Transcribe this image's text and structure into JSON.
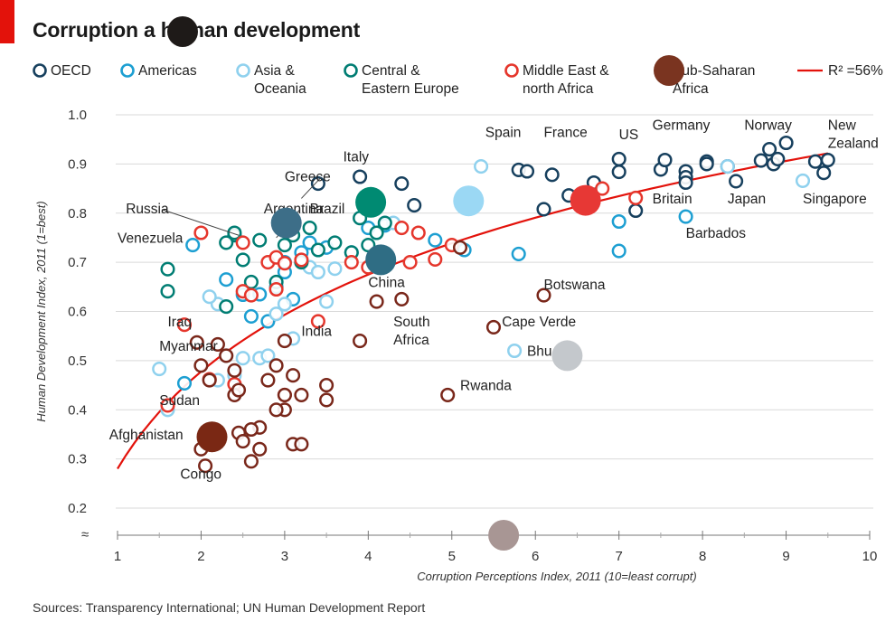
{
  "title": "Corruption a human development",
  "source": "Sources: Transparency International; UN Human Development Report",
  "chart_data": {
    "type": "scatter",
    "title": "Corruption a human development",
    "xlabel": "Corruption Perceptions Index, 2011 (10=least corrupt)",
    "ylabel": "Human Development Index, 2011 (1=best)",
    "xlim": [
      1,
      10
    ],
    "ylim": [
      0.2,
      1.0
    ],
    "xticks": [
      "1",
      "2",
      "3",
      "4",
      "5",
      "6",
      "7",
      "8",
      "9",
      "10"
    ],
    "yticks": [
      "0.2",
      "0.3",
      "0.4",
      "0.5",
      "0.6",
      "0.7",
      "0.8",
      "0.9",
      "1.0"
    ],
    "axis_break": "≈",
    "legend": [
      {
        "label": "OECD",
        "color": "#17405e"
      },
      {
        "label": "Americas",
        "color": "#1d9fd2"
      },
      {
        "label": "Asia &\nOceania",
        "color": "#8fd1ee"
      },
      {
        "label": "Central &\nEastern Europe",
        "color": "#007d73"
      },
      {
        "label": "Middle East &\nnorth Africa",
        "color": "#e5362c"
      },
      {
        "label": "Sub-Saharan\nAfrica",
        "color": "#79271a"
      },
      {
        "label": "R² =56%",
        "color": "#e3120b"
      }
    ],
    "trend": {
      "type": "logarithmic",
      "r_squared_label": "R² =56%",
      "x_range": [
        1,
        9.5
      ]
    },
    "series": [
      {
        "name": "OECD",
        "color": "#17405e",
        "points": [
          {
            "x": 3.4,
            "y": 0.86
          },
          {
            "x": 3.9,
            "y": 0.874
          },
          {
            "x": 4.4,
            "y": 0.86
          },
          {
            "x": 4.55,
            "y": 0.816
          },
          {
            "x": 5.8,
            "y": 0.888
          },
          {
            "x": 5.9,
            "y": 0.885
          },
          {
            "x": 6.2,
            "y": 0.878
          },
          {
            "x": 6.1,
            "y": 0.808
          },
          {
            "x": 6.4,
            "y": 0.836
          },
          {
            "x": 6.7,
            "y": 0.862
          },
          {
            "x": 7.0,
            "y": 0.884
          },
          {
            "x": 7.0,
            "y": 0.91
          },
          {
            "x": 7.5,
            "y": 0.889
          },
          {
            "x": 7.55,
            "y": 0.908
          },
          {
            "x": 7.2,
            "y": 0.805
          },
          {
            "x": 7.8,
            "y": 0.885
          },
          {
            "x": 7.8,
            "y": 0.873
          },
          {
            "x": 7.8,
            "y": 0.862
          },
          {
            "x": 8.05,
            "y": 0.905
          },
          {
            "x": 8.05,
            "y": 0.9
          },
          {
            "x": 8.3,
            "y": 0.895
          },
          {
            "x": 8.4,
            "y": 0.865
          },
          {
            "x": 8.7,
            "y": 0.907
          },
          {
            "x": 8.8,
            "y": 0.93
          },
          {
            "x": 8.85,
            "y": 0.9
          },
          {
            "x": 8.9,
            "y": 0.91
          },
          {
            "x": 9.0,
            "y": 0.943
          },
          {
            "x": 9.35,
            "y": 0.905
          },
          {
            "x": 9.45,
            "y": 0.882
          },
          {
            "x": 9.5,
            "y": 0.908
          }
        ]
      },
      {
        "name": "Americas",
        "color": "#1d9fd2",
        "points": [
          {
            "x": 1.9,
            "y": 0.735
          },
          {
            "x": 2.6,
            "y": 0.59
          },
          {
            "x": 2.7,
            "y": 0.635
          },
          {
            "x": 2.5,
            "y": 0.634
          },
          {
            "x": 3.0,
            "y": 0.68
          },
          {
            "x": 3.1,
            "y": 0.625
          },
          {
            "x": 3.2,
            "y": 0.72
          },
          {
            "x": 2.9,
            "y": 0.65
          },
          {
            "x": 3.3,
            "y": 0.74
          },
          {
            "x": 3.5,
            "y": 0.73
          },
          {
            "x": 3.8,
            "y": 0.72
          },
          {
            "x": 4.0,
            "y": 0.77
          },
          {
            "x": 4.2,
            "y": 0.775
          },
          {
            "x": 4.8,
            "y": 0.745
          },
          {
            "x": 5.15,
            "y": 0.725
          },
          {
            "x": 5.2,
            "y": 0.824
          },
          {
            "x": 5.8,
            "y": 0.717
          },
          {
            "x": 7.0,
            "y": 0.783
          },
          {
            "x": 7.0,
            "y": 0.723
          },
          {
            "x": 7.8,
            "y": 0.793
          },
          {
            "x": 1.8,
            "y": 0.454
          },
          {
            "x": 2.3,
            "y": 0.665
          },
          {
            "x": 2.8,
            "y": 0.58
          },
          {
            "x": 3.0,
            "y": 0.7
          }
        ]
      },
      {
        "name": "Asia & Oceania",
        "color": "#8fd1ee",
        "points": [
          {
            "x": 1.5,
            "y": 0.483
          },
          {
            "x": 1.6,
            "y": 0.4
          },
          {
            "x": 2.2,
            "y": 0.46
          },
          {
            "x": 2.3,
            "y": 0.51
          },
          {
            "x": 2.2,
            "y": 0.615
          },
          {
            "x": 2.5,
            "y": 0.505
          },
          {
            "x": 2.7,
            "y": 0.505
          },
          {
            "x": 2.8,
            "y": 0.51
          },
          {
            "x": 2.9,
            "y": 0.595
          },
          {
            "x": 3.0,
            "y": 0.615
          },
          {
            "x": 3.1,
            "y": 0.545
          },
          {
            "x": 3.3,
            "y": 0.69
          },
          {
            "x": 3.4,
            "y": 0.68
          },
          {
            "x": 3.5,
            "y": 0.62
          },
          {
            "x": 3.6,
            "y": 0.687
          },
          {
            "x": 4.3,
            "y": 0.78
          },
          {
            "x": 5.2,
            "y": 0.826
          },
          {
            "x": 5.35,
            "y": 0.895
          },
          {
            "x": 5.75,
            "y": 0.52
          },
          {
            "x": 8.3,
            "y": 0.895
          },
          {
            "x": 9.2,
            "y": 0.866
          },
          {
            "x": 2.1,
            "y": 0.63
          },
          {
            "x": 2.4,
            "y": 0.47
          }
        ]
      },
      {
        "name": "Central & Eastern Europe",
        "color": "#007d73",
        "points": [
          {
            "x": 1.6,
            "y": 0.686
          },
          {
            "x": 1.6,
            "y": 0.641
          },
          {
            "x": 2.3,
            "y": 0.61
          },
          {
            "x": 2.4,
            "y": 0.755
          },
          {
            "x": 2.5,
            "y": 0.705
          },
          {
            "x": 2.6,
            "y": 0.66
          },
          {
            "x": 2.7,
            "y": 0.745
          },
          {
            "x": 2.9,
            "y": 0.66
          },
          {
            "x": 3.0,
            "y": 0.735
          },
          {
            "x": 3.1,
            "y": 0.755
          },
          {
            "x": 3.3,
            "y": 0.77
          },
          {
            "x": 3.4,
            "y": 0.725
          },
          {
            "x": 3.6,
            "y": 0.74
          },
          {
            "x": 3.8,
            "y": 0.72
          },
          {
            "x": 3.9,
            "y": 0.79
          },
          {
            "x": 4.0,
            "y": 0.82
          },
          {
            "x": 4.1,
            "y": 0.76
          },
          {
            "x": 4.2,
            "y": 0.78
          },
          {
            "x": 2.3,
            "y": 0.74
          },
          {
            "x": 2.4,
            "y": 0.76
          },
          {
            "x": 3.2,
            "y": 0.7
          },
          {
            "x": 4.0,
            "y": 0.735
          }
        ]
      },
      {
        "name": "Middle East & north Africa",
        "color": "#e5362c",
        "points": [
          {
            "x": 1.6,
            "y": 0.409
          },
          {
            "x": 1.8,
            "y": 0.573
          },
          {
            "x": 2.0,
            "y": 0.76
          },
          {
            "x": 2.1,
            "y": 0.462
          },
          {
            "x": 2.4,
            "y": 0.452
          },
          {
            "x": 2.5,
            "y": 0.74
          },
          {
            "x": 2.5,
            "y": 0.641
          },
          {
            "x": 2.6,
            "y": 0.633
          },
          {
            "x": 2.8,
            "y": 0.7
          },
          {
            "x": 2.9,
            "y": 0.71
          },
          {
            "x": 3.0,
            "y": 0.698
          },
          {
            "x": 3.2,
            "y": 0.705
          },
          {
            "x": 3.4,
            "y": 0.58
          },
          {
            "x": 3.8,
            "y": 0.7
          },
          {
            "x": 4.0,
            "y": 0.69
          },
          {
            "x": 4.4,
            "y": 0.77
          },
          {
            "x": 4.6,
            "y": 0.76
          },
          {
            "x": 4.8,
            "y": 0.706
          },
          {
            "x": 4.5,
            "y": 0.7
          },
          {
            "x": 5.0,
            "y": 0.735
          },
          {
            "x": 6.6,
            "y": 0.825
          },
          {
            "x": 6.8,
            "y": 0.85
          },
          {
            "x": 7.2,
            "y": 0.831
          },
          {
            "x": 3.0,
            "y": 0.43
          },
          {
            "x": 2.9,
            "y": 0.645
          }
        ]
      },
      {
        "name": "Sub-Saharan Africa",
        "color": "#79271a",
        "points": [
          {
            "x": 1.95,
            "y": 0.537
          },
          {
            "x": 2.0,
            "y": 0.49
          },
          {
            "x": 2.0,
            "y": 0.32
          },
          {
            "x": 2.05,
            "y": 0.286
          },
          {
            "x": 2.2,
            "y": 0.533
          },
          {
            "x": 2.2,
            "y": 0.344
          },
          {
            "x": 2.3,
            "y": 0.51
          },
          {
            "x": 2.4,
            "y": 0.43
          },
          {
            "x": 2.4,
            "y": 0.48
          },
          {
            "x": 2.45,
            "y": 0.353
          },
          {
            "x": 2.45,
            "y": 0.44
          },
          {
            "x": 2.5,
            "y": 0.336
          },
          {
            "x": 2.6,
            "y": 0.295
          },
          {
            "x": 2.7,
            "y": 0.364
          },
          {
            "x": 2.7,
            "y": 0.32
          },
          {
            "x": 2.8,
            "y": 0.46
          },
          {
            "x": 2.9,
            "y": 0.49
          },
          {
            "x": 3.0,
            "y": 0.54
          },
          {
            "x": 3.0,
            "y": 0.4
          },
          {
            "x": 3.0,
            "y": 0.43
          },
          {
            "x": 3.1,
            "y": 0.33
          },
          {
            "x": 3.2,
            "y": 0.43
          },
          {
            "x": 3.2,
            "y": 0.33
          },
          {
            "x": 3.5,
            "y": 0.45
          },
          {
            "x": 3.5,
            "y": 0.42
          },
          {
            "x": 3.9,
            "y": 0.54
          },
          {
            "x": 4.1,
            "y": 0.62
          },
          {
            "x": 4.4,
            "y": 0.625
          },
          {
            "x": 4.95,
            "y": 0.43
          },
          {
            "x": 5.1,
            "y": 0.73
          },
          {
            "x": 5.5,
            "y": 0.568
          },
          {
            "x": 6.1,
            "y": 0.633
          },
          {
            "x": 3.1,
            "y": 0.47
          },
          {
            "x": 2.9,
            "y": 0.4
          },
          {
            "x": 2.6,
            "y": 0.36
          },
          {
            "x": 2.1,
            "y": 0.46
          }
        ]
      }
    ],
    "annotations": [
      {
        "text": "Russia",
        "x": 1.1,
        "y": 0.8,
        "line_to": {
          "x": 2.45,
          "y": 0.755
        }
      },
      {
        "text": "Argentina",
        "x": 2.75,
        "y": 0.8,
        "line_to": {
          "x": 2.9,
          "y": 0.75
        }
      },
      {
        "text": "Venezuela",
        "x": 1.0,
        "y": 0.74
      },
      {
        "text": "Greece",
        "x": 3.0,
        "y": 0.865,
        "line_to": {
          "x": 3.2,
          "y": 0.83
        }
      },
      {
        "text": "Italy",
        "x": 3.7,
        "y": 0.905
      },
      {
        "text": "Brazil",
        "x": 3.3,
        "y": 0.8
      },
      {
        "text": "China",
        "x": 4.0,
        "y": 0.65
      },
      {
        "text": "South\nAfrica",
        "x": 4.3,
        "y": 0.57
      },
      {
        "text": "India",
        "x": 3.2,
        "y": 0.55
      },
      {
        "text": "Iraq",
        "x": 1.6,
        "y": 0.57
      },
      {
        "text": "Myanmar",
        "x": 1.5,
        "y": 0.52
      },
      {
        "text": "Sudan",
        "x": 1.5,
        "y": 0.41
      },
      {
        "text": "Afghanistan",
        "x": 0.9,
        "y": 0.34
      },
      {
        "text": "Congo",
        "x": 1.75,
        "y": 0.26
      },
      {
        "text": "Botswana",
        "x": 6.1,
        "y": 0.645
      },
      {
        "text": "Cape Verde",
        "x": 5.6,
        "y": 0.57
      },
      {
        "text": "Bhu",
        "x": 5.9,
        "y": 0.51
      },
      {
        "text": "Rwanda",
        "x": 5.1,
        "y": 0.44
      },
      {
        "text": "Spain",
        "x": 5.4,
        "y": 0.955
      },
      {
        "text": "France",
        "x": 6.1,
        "y": 0.955
      },
      {
        "text": "US",
        "x": 7.0,
        "y": 0.95
      },
      {
        "text": "Germany",
        "x": 7.4,
        "y": 0.97
      },
      {
        "text": "Norway",
        "x": 8.5,
        "y": 0.97
      },
      {
        "text": "New\nZealand",
        "x": 9.5,
        "y": 0.97
      },
      {
        "text": "Britain",
        "x": 7.4,
        "y": 0.82
      },
      {
        "text": "Japan",
        "x": 8.3,
        "y": 0.82
      },
      {
        "text": "Singapore",
        "x": 9.2,
        "y": 0.82
      },
      {
        "text": "Barbados",
        "x": 7.8,
        "y": 0.75
      }
    ]
  }
}
